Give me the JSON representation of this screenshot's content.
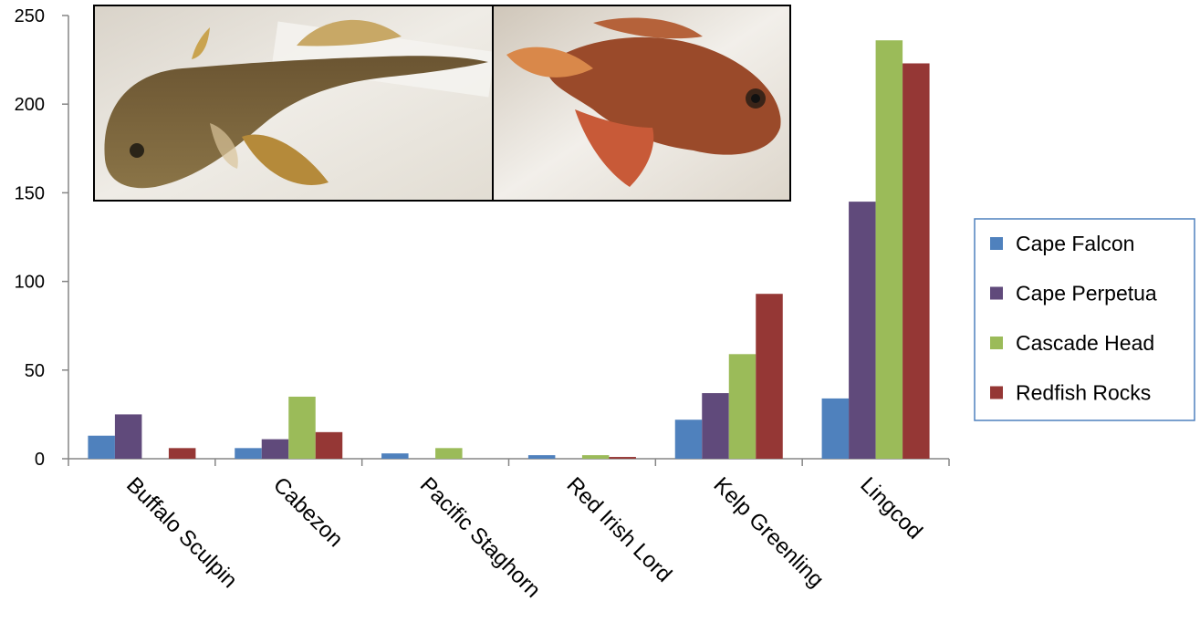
{
  "chart_data": {
    "type": "bar",
    "title": "",
    "xlabel": "",
    "ylabel": "",
    "ylim": [
      0,
      250
    ],
    "yticks": [
      0,
      50,
      100,
      150,
      200,
      250
    ],
    "categories": [
      "Buffalo Sculpin",
      "Cabezon",
      "Pacific Staghorn",
      "Red Irish Lord",
      "Kelp Greenling",
      "Lingcod"
    ],
    "series": [
      {
        "name": "Cape Falcon",
        "color": "#4F81BD",
        "values": [
          13,
          6,
          3,
          2,
          22,
          34
        ]
      },
      {
        "name": "Cape Perpetua",
        "color": "#604A7B",
        "values": [
          25,
          11,
          0,
          0,
          37,
          145
        ]
      },
      {
        "name": "Cascade Head",
        "color": "#9BBB59",
        "values": [
          0,
          35,
          6,
          2,
          59,
          236
        ]
      },
      {
        "name": "Redfish Rocks",
        "color": "#953735",
        "values": [
          6,
          15,
          0,
          1,
          93,
          223
        ]
      }
    ],
    "grid": false,
    "legend_position": "right",
    "legend_border_color": "#4F81BD",
    "inset_images": [
      {
        "subject": "sculpin-fish-photo"
      },
      {
        "subject": "red-irish-lord-fish-photo"
      }
    ]
  }
}
